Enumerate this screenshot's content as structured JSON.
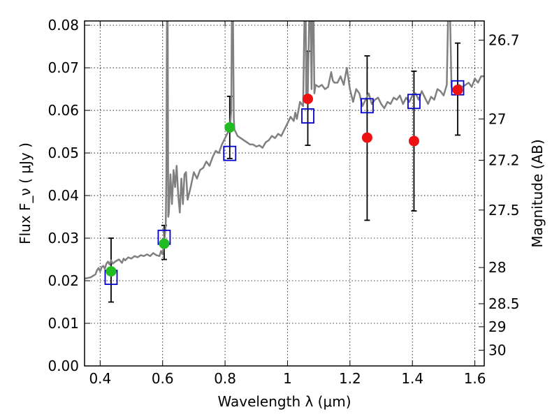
{
  "chart_data": {
    "type": "scatter",
    "xlabel": "Wavelength  λ (μm)",
    "ylabel": "Flux  F_ν  ( μJy )",
    "ylabel_right": "Magnitude (AB)",
    "xlim": [
      0.35,
      1.63
    ],
    "ylim": [
      0.0,
      0.081
    ],
    "grid": true,
    "x_ticks": [
      0.4,
      0.6,
      0.8,
      1.0,
      1.2,
      1.4,
      1.6
    ],
    "x_tick_labels": [
      "0.4",
      "0.6",
      "0.8",
      "1",
      "1.2",
      "1.4",
      "1.6"
    ],
    "y_ticks": [
      0.0,
      0.01,
      0.02,
      0.03,
      0.04,
      0.05,
      0.06,
      0.07,
      0.08
    ],
    "y_tick_labels": [
      "0.00",
      "0.01",
      "0.02",
      "0.03",
      "0.04",
      "0.05",
      "0.06",
      "0.07",
      "0.08"
    ],
    "right_ticks": [
      {
        "label": "26.7",
        "flux": 0.0765
      },
      {
        "label": "27",
        "flux": 0.058
      },
      {
        "label": "27.2",
        "flux": 0.0483
      },
      {
        "label": "27.5",
        "flux": 0.0366
      },
      {
        "label": "28",
        "flux": 0.0231
      },
      {
        "label": "28.5",
        "flux": 0.0146
      },
      {
        "label": "29",
        "flux": 0.0092
      },
      {
        "label": "30",
        "flux": 0.0037
      }
    ],
    "series": [
      {
        "kind": "error_bars",
        "color": "#000000",
        "points": [
          {
            "x": 0.435,
            "lo": 0.015,
            "hi": 0.03
          },
          {
            "x": 0.605,
            "lo": 0.025,
            "hi": 0.033
          },
          {
            "x": 0.815,
            "lo": 0.0487,
            "hi": 0.0633
          },
          {
            "x": 1.065,
            "lo": 0.0518,
            "hi": 0.0739
          },
          {
            "x": 1.255,
            "lo": 0.0342,
            "hi": 0.0728
          },
          {
            "x": 1.405,
            "lo": 0.0364,
            "hi": 0.0692
          },
          {
            "x": 1.545,
            "lo": 0.0542,
            "hi": 0.0758
          }
        ]
      },
      {
        "kind": "model_spectrum",
        "color": "#808080",
        "points": [
          [
            0.35,
            0.0205
          ],
          [
            0.37,
            0.0208
          ],
          [
            0.385,
            0.0215
          ],
          [
            0.39,
            0.0225
          ],
          [
            0.395,
            0.023
          ],
          [
            0.4,
            0.0222
          ],
          [
            0.405,
            0.0232
          ],
          [
            0.41,
            0.0235
          ],
          [
            0.415,
            0.0228
          ],
          [
            0.42,
            0.024
          ],
          [
            0.425,
            0.0245
          ],
          [
            0.43,
            0.0238
          ],
          [
            0.435,
            0.0248
          ],
          [
            0.44,
            0.024
          ],
          [
            0.45,
            0.0246
          ],
          [
            0.46,
            0.025
          ],
          [
            0.47,
            0.0242
          ],
          [
            0.475,
            0.0252
          ],
          [
            0.48,
            0.0248
          ],
          [
            0.49,
            0.0255
          ],
          [
            0.5,
            0.0252
          ],
          [
            0.51,
            0.0258
          ],
          [
            0.52,
            0.0255
          ],
          [
            0.53,
            0.026
          ],
          [
            0.54,
            0.0258
          ],
          [
            0.55,
            0.0262
          ],
          [
            0.56,
            0.0258
          ],
          [
            0.57,
            0.0265
          ],
          [
            0.58,
            0.026
          ],
          [
            0.59,
            0.0258
          ],
          [
            0.595,
            0.027
          ],
          [
            0.6,
            0.0262
          ],
          [
            0.605,
            0.029
          ],
          [
            0.61,
            0.033
          ],
          [
            0.612,
            0.045
          ],
          [
            0.614,
            0.085
          ],
          [
            0.616,
            0.085
          ],
          [
            0.618,
            0.035
          ],
          [
            0.62,
            0.036
          ],
          [
            0.625,
            0.045
          ],
          [
            0.63,
            0.038
          ],
          [
            0.635,
            0.046
          ],
          [
            0.64,
            0.042
          ],
          [
            0.645,
            0.047
          ],
          [
            0.65,
            0.04
          ],
          [
            0.655,
            0.036
          ],
          [
            0.66,
            0.044
          ],
          [
            0.665,
            0.038
          ],
          [
            0.67,
            0.045
          ],
          [
            0.675,
            0.0455
          ],
          [
            0.68,
            0.039
          ],
          [
            0.69,
            0.042
          ],
          [
            0.7,
            0.0455
          ],
          [
            0.71,
            0.044
          ],
          [
            0.72,
            0.046
          ],
          [
            0.73,
            0.0465
          ],
          [
            0.74,
            0.048
          ],
          [
            0.75,
            0.047
          ],
          [
            0.76,
            0.049
          ],
          [
            0.77,
            0.0505
          ],
          [
            0.78,
            0.05
          ],
          [
            0.79,
            0.052
          ],
          [
            0.8,
            0.0535
          ],
          [
            0.81,
            0.055
          ],
          [
            0.815,
            0.0555
          ],
          [
            0.82,
            0.06
          ],
          [
            0.822,
            0.085
          ],
          [
            0.825,
            0.085
          ],
          [
            0.828,
            0.058
          ],
          [
            0.83,
            0.0555
          ],
          [
            0.84,
            0.054
          ],
          [
            0.85,
            0.0535
          ],
          [
            0.86,
            0.053
          ],
          [
            0.87,
            0.0525
          ],
          [
            0.88,
            0.052
          ],
          [
            0.89,
            0.052
          ],
          [
            0.9,
            0.0515
          ],
          [
            0.91,
            0.0518
          ],
          [
            0.92,
            0.0512
          ],
          [
            0.93,
            0.0525
          ],
          [
            0.94,
            0.053
          ],
          [
            0.95,
            0.054
          ],
          [
            0.96,
            0.0535
          ],
          [
            0.97,
            0.0545
          ],
          [
            0.98,
            0.054
          ],
          [
            0.99,
            0.0555
          ],
          [
            1.0,
            0.057
          ],
          [
            1.01,
            0.0585
          ],
          [
            1.02,
            0.0575
          ],
          [
            1.025,
            0.0595
          ],
          [
            1.03,
            0.058
          ],
          [
            1.04,
            0.062
          ],
          [
            1.05,
            0.061
          ],
          [
            1.055,
            0.085
          ],
          [
            1.058,
            0.085
          ],
          [
            1.06,
            0.062
          ],
          [
            1.065,
            0.064
          ],
          [
            1.07,
            0.085
          ],
          [
            1.073,
            0.085
          ],
          [
            1.077,
            0.065
          ],
          [
            1.08,
            0.085
          ],
          [
            1.083,
            0.085
          ],
          [
            1.086,
            0.064
          ],
          [
            1.09,
            0.066
          ],
          [
            1.1,
            0.0655
          ],
          [
            1.11,
            0.066
          ],
          [
            1.12,
            0.065
          ],
          [
            1.13,
            0.0655
          ],
          [
            1.14,
            0.069
          ],
          [
            1.145,
            0.067
          ],
          [
            1.15,
            0.0665
          ],
          [
            1.16,
            0.0665
          ],
          [
            1.17,
            0.068
          ],
          [
            1.18,
            0.066
          ],
          [
            1.19,
            0.07
          ],
          [
            1.2,
            0.065
          ],
          [
            1.21,
            0.062
          ],
          [
            1.22,
            0.065
          ],
          [
            1.23,
            0.064
          ],
          [
            1.24,
            0.061
          ],
          [
            1.25,
            0.0625
          ],
          [
            1.26,
            0.064
          ],
          [
            1.27,
            0.0615
          ],
          [
            1.28,
            0.0625
          ],
          [
            1.29,
            0.063
          ],
          [
            1.3,
            0.0615
          ],
          [
            1.31,
            0.0605
          ],
          [
            1.32,
            0.062
          ],
          [
            1.33,
            0.0615
          ],
          [
            1.34,
            0.063
          ],
          [
            1.35,
            0.0625
          ],
          [
            1.36,
            0.0635
          ],
          [
            1.37,
            0.0615
          ],
          [
            1.38,
            0.063
          ],
          [
            1.39,
            0.062
          ],
          [
            1.4,
            0.0635
          ],
          [
            1.41,
            0.064
          ],
          [
            1.42,
            0.0625
          ],
          [
            1.43,
            0.0645
          ],
          [
            1.44,
            0.063
          ],
          [
            1.45,
            0.0615
          ],
          [
            1.46,
            0.0632
          ],
          [
            1.47,
            0.0625
          ],
          [
            1.48,
            0.065
          ],
          [
            1.49,
            0.0645
          ],
          [
            1.5,
            0.0635
          ],
          [
            1.51,
            0.066
          ],
          [
            1.515,
            0.085
          ],
          [
            1.52,
            0.085
          ],
          [
            1.525,
            0.0655
          ],
          [
            1.53,
            0.0645
          ],
          [
            1.54,
            0.065
          ],
          [
            1.55,
            0.066
          ],
          [
            1.56,
            0.0655
          ],
          [
            1.57,
            0.066
          ],
          [
            1.58,
            0.0665
          ],
          [
            1.59,
            0.0655
          ],
          [
            1.6,
            0.0675
          ],
          [
            1.61,
            0.0665
          ],
          [
            1.62,
            0.068
          ],
          [
            1.63,
            0.068
          ]
        ]
      },
      {
        "kind": "open_squares",
        "color": "#0000cc",
        "points": [
          [
            0.435,
            0.0208
          ],
          [
            0.605,
            0.0302
          ],
          [
            0.815,
            0.0499
          ],
          [
            1.065,
            0.0587
          ],
          [
            1.255,
            0.0611
          ],
          [
            1.405,
            0.0621
          ],
          [
            1.545,
            0.0653
          ]
        ]
      },
      {
        "kind": "filled_circles",
        "color": "#22bb22",
        "points": [
          [
            0.435,
            0.0222
          ],
          [
            0.605,
            0.0287
          ],
          [
            0.815,
            0.056
          ]
        ]
      },
      {
        "kind": "filled_circles",
        "color": "#ee1111",
        "points": [
          [
            1.065,
            0.0627
          ],
          [
            1.255,
            0.0536
          ],
          [
            1.405,
            0.0528
          ],
          [
            1.545,
            0.0648
          ]
        ]
      }
    ]
  }
}
